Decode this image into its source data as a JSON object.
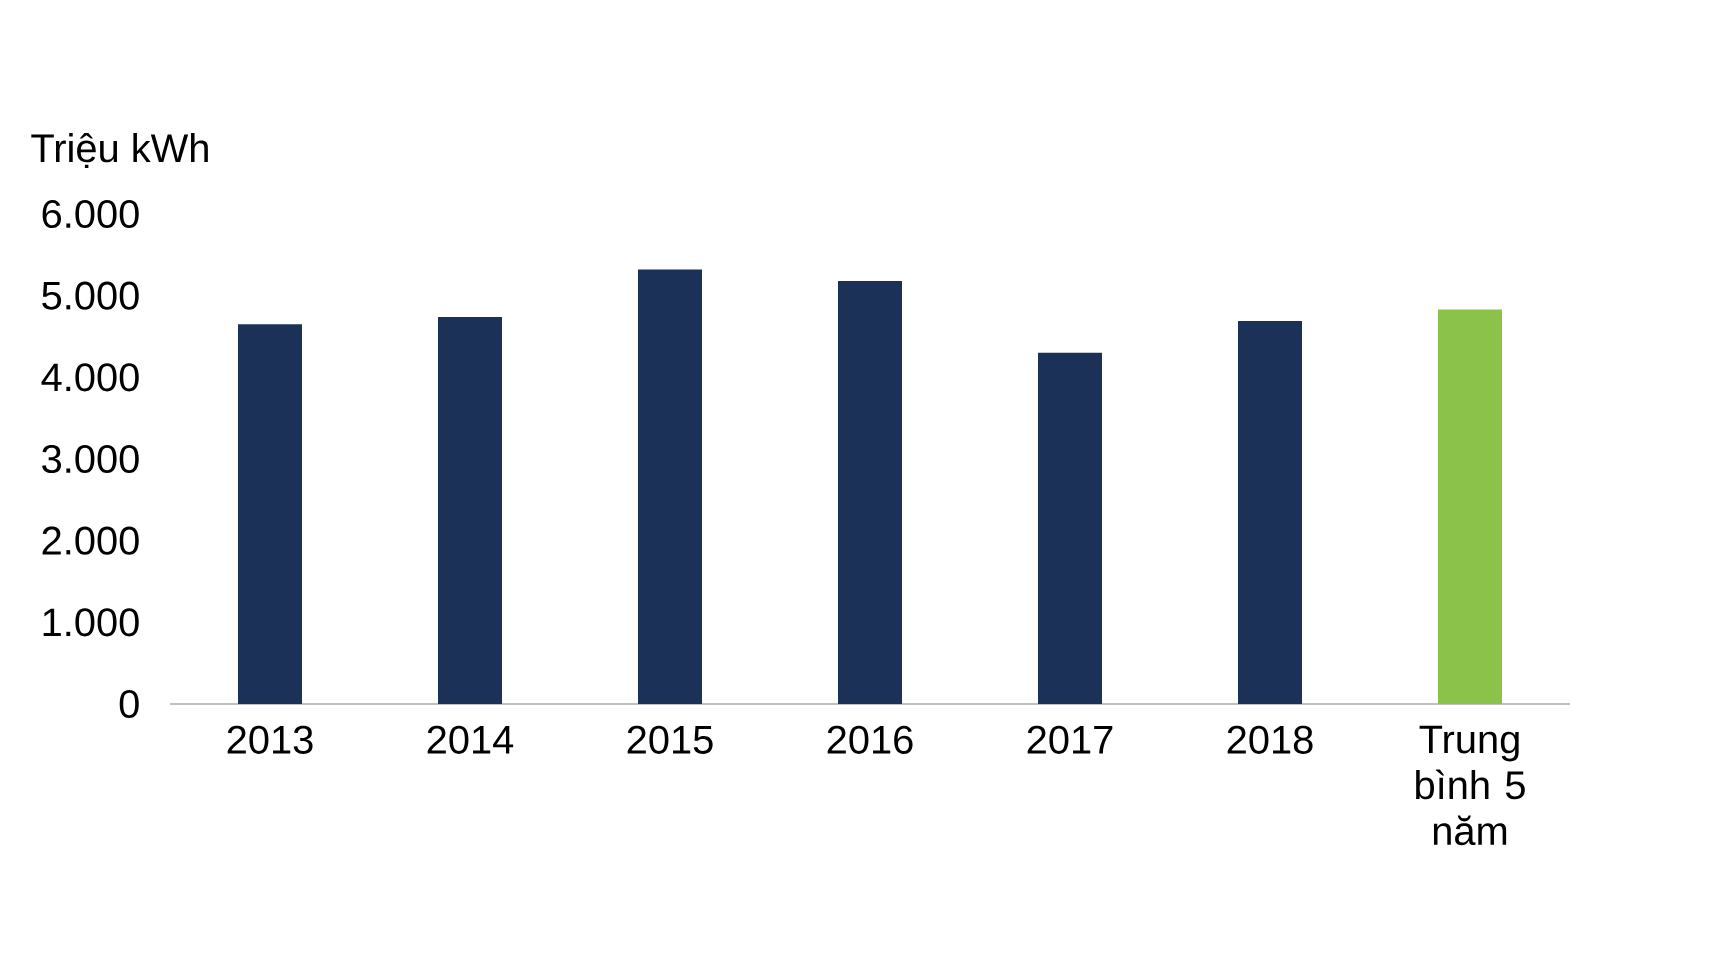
{
  "chart_data": {
    "type": "bar",
    "ylabel": "Triệu kWh",
    "categories": [
      "2013",
      "2014",
      "2015",
      "2016",
      "2017",
      "2018",
      "Trung bình 5 năm"
    ],
    "values": [
      4650,
      4740,
      5320,
      5180,
      4300,
      4690,
      4830
    ],
    "colors": [
      "#1b3157",
      "#1b3157",
      "#1b3157",
      "#1b3157",
      "#1b3157",
      "#1b3157",
      "#8bc34a"
    ],
    "ylim": [
      0,
      6000
    ],
    "yticks": [
      0,
      {
        "value": 1000,
        "label": "1.000"
      },
      {
        "value": 2000,
        "label": "2.000"
      },
      {
        "value": 3000,
        "label": "3.000"
      },
      {
        "value": 4000,
        "label": "4.000"
      },
      {
        "value": 5000,
        "label": "5.000"
      },
      {
        "value": 6000,
        "label": "6.000"
      }
    ]
  }
}
